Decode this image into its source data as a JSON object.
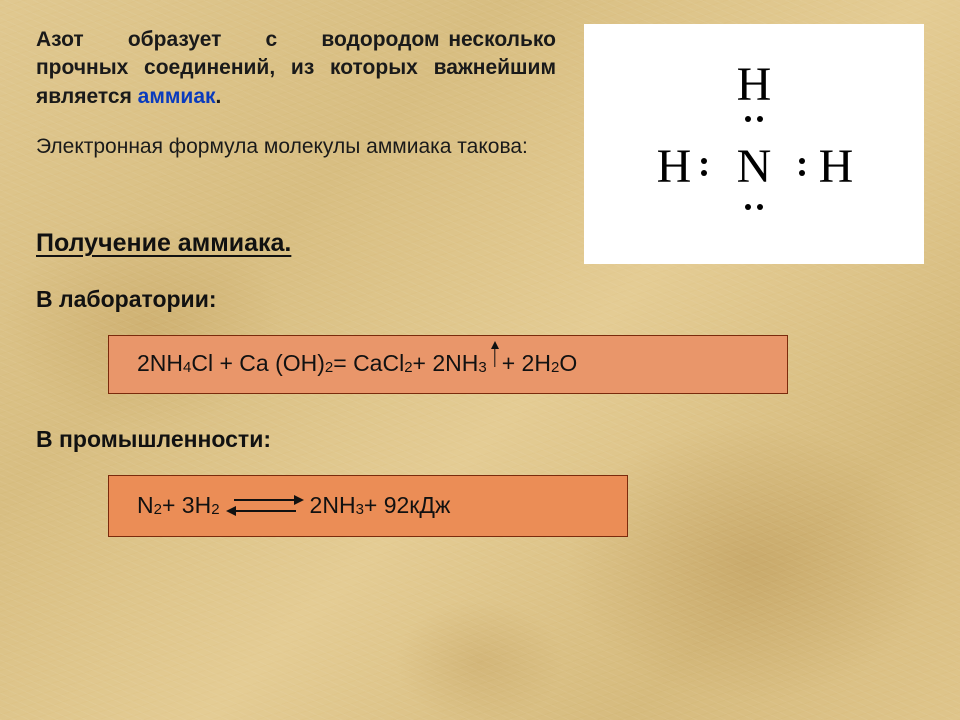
{
  "intro": {
    "line1_a": "Азот",
    "line1_b": "образует",
    "line1_c": "с",
    "line1_d": "водородом",
    "line2": "несколько прочных соединений, из которых важнейшим является ",
    "ammiak": "аммиак",
    "period": ".",
    "p2": "Электронная формула молекулы аммиака такова:"
  },
  "diagram": {
    "center": "N",
    "h": "H",
    "atom_fontsize": 48,
    "dot_size": 6,
    "bg": "#ffffff"
  },
  "section_title": "Получение аммиака.",
  "sub_lab": "В лаборатории:",
  "sub_ind": "В промышленности:",
  "formula_lab": {
    "parts": [
      {
        "t": "2NH"
      },
      {
        "t": "4",
        "sub": true
      },
      {
        "t": "Cl + Ca (OH)"
      },
      {
        "t": "2",
        "sub": true
      },
      {
        "t": " = CaCl"
      },
      {
        "t": "2",
        "sub": true
      },
      {
        "t": " + 2NH"
      },
      {
        "t": "3",
        "sub": true
      },
      {
        "gas": true
      },
      {
        "t": " + 2H"
      },
      {
        "t": "2",
        "sub": true
      },
      {
        "t": "O"
      }
    ],
    "bg": "#e9966a",
    "border": "#7a2a0c"
  },
  "formula_ind": {
    "left": [
      {
        "t": "N"
      },
      {
        "t": "2",
        "sub": true
      },
      {
        "t": " + 3H"
      },
      {
        "t": "2",
        "sub": true
      }
    ],
    "right": [
      {
        "t": " 2NH"
      },
      {
        "t": "3",
        "sub": true
      },
      {
        "t": " + 92кДж"
      }
    ],
    "bg": "#eb8d56",
    "border": "#7a2a0c"
  },
  "colors": {
    "text": "#111111",
    "link": "#0a3bbd",
    "bg_base": "#dfc58b"
  },
  "fonts": {
    "body": "Arial",
    "diagram": "Times New Roman",
    "intro_size": 21,
    "title_size": 25,
    "sub_size": 23,
    "formula_size": 23
  }
}
